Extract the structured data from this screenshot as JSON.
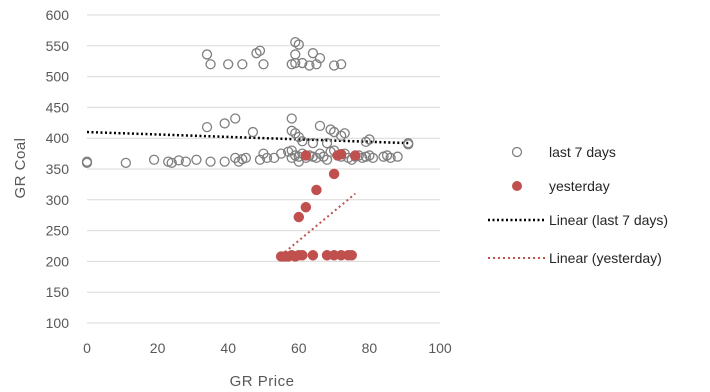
{
  "chart_data": {
    "type": "scatter",
    "xlabel": "GR Price",
    "ylabel": "GR Coal",
    "xlim": [
      0,
      100
    ],
    "ylim": [
      100,
      600
    ],
    "x_ticks": [
      "0",
      "20",
      "40",
      "60",
      "80",
      "100"
    ],
    "y_ticks": [
      "100",
      "150",
      "200",
      "250",
      "300",
      "350",
      "400",
      "450",
      "500",
      "550",
      "600"
    ],
    "grid": "horizontal",
    "legend_position": "right",
    "series": [
      {
        "name": "last 7 days",
        "marker": "hollow-circle",
        "color": "#7f7f7f",
        "points": [
          [
            0,
            362
          ],
          [
            0,
            360
          ],
          [
            11,
            360
          ],
          [
            19,
            365
          ],
          [
            23,
            362
          ],
          [
            24,
            360
          ],
          [
            26,
            364
          ],
          [
            28,
            362
          ],
          [
            31,
            365
          ],
          [
            35,
            362
          ],
          [
            39,
            362
          ],
          [
            42,
            368
          ],
          [
            43,
            362
          ],
          [
            44,
            366
          ],
          [
            45,
            368
          ],
          [
            47,
            410
          ],
          [
            49,
            365
          ],
          [
            50,
            375
          ],
          [
            51,
            368
          ],
          [
            53,
            368
          ],
          [
            55,
            375
          ],
          [
            57,
            378
          ],
          [
            58,
            380
          ],
          [
            58,
            368
          ],
          [
            59,
            372
          ],
          [
            60,
            370
          ],
          [
            60,
            362
          ],
          [
            61,
            375
          ],
          [
            62,
            368
          ],
          [
            63,
            372
          ],
          [
            64,
            370
          ],
          [
            65,
            368
          ],
          [
            66,
            375
          ],
          [
            67,
            370
          ],
          [
            68,
            365
          ],
          [
            69,
            378
          ],
          [
            70,
            380
          ],
          [
            71,
            372
          ],
          [
            72,
            370
          ],
          [
            73,
            375
          ],
          [
            74,
            368
          ],
          [
            75,
            365
          ],
          [
            76,
            370
          ],
          [
            77,
            372
          ],
          [
            78,
            368
          ],
          [
            79,
            370
          ],
          [
            80,
            372
          ],
          [
            81,
            368
          ],
          [
            84,
            370
          ],
          [
            85,
            372
          ],
          [
            86,
            368
          ],
          [
            88,
            370
          ],
          [
            91,
            390
          ],
          [
            91,
            392
          ],
          [
            34,
            418
          ],
          [
            39,
            424
          ],
          [
            42,
            432
          ],
          [
            58,
            432
          ],
          [
            58,
            412
          ],
          [
            59,
            408
          ],
          [
            60,
            402
          ],
          [
            61,
            395
          ],
          [
            66,
            420
          ],
          [
            69,
            414
          ],
          [
            70,
            410
          ],
          [
            72,
            404
          ],
          [
            73,
            408
          ],
          [
            79,
            394
          ],
          [
            80,
            398
          ],
          [
            68,
            392
          ],
          [
            64,
            392
          ],
          [
            34,
            536
          ],
          [
            35,
            520
          ],
          [
            40,
            520
          ],
          [
            44,
            520
          ],
          [
            48,
            538
          ],
          [
            49,
            542
          ],
          [
            50,
            520
          ],
          [
            58,
            520
          ],
          [
            59,
            522
          ],
          [
            59,
            536
          ],
          [
            59,
            556
          ],
          [
            60,
            552
          ],
          [
            61,
            522
          ],
          [
            63,
            518
          ],
          [
            64,
            538
          ],
          [
            65,
            520
          ],
          [
            66,
            530
          ],
          [
            70,
            518
          ],
          [
            72,
            520
          ]
        ],
        "trendline": {
          "name": "Linear (last 7 days)",
          "style": "dotted",
          "color": "#000000",
          "from": [
            0,
            410
          ],
          "to": [
            91,
            392
          ]
        }
      },
      {
        "name": "yesterday",
        "marker": "filled-circle",
        "color": "#c0504d",
        "points": [
          [
            55,
            208
          ],
          [
            56,
            208
          ],
          [
            57,
            208
          ],
          [
            58,
            210
          ],
          [
            59,
            208
          ],
          [
            60,
            210
          ],
          [
            61,
            210
          ],
          [
            64,
            210
          ],
          [
            68,
            210
          ],
          [
            70,
            210
          ],
          [
            72,
            210
          ],
          [
            74,
            210
          ],
          [
            75,
            210
          ],
          [
            60,
            272
          ],
          [
            62,
            288
          ],
          [
            65,
            316
          ],
          [
            70,
            342
          ],
          [
            62,
            372
          ],
          [
            71,
            372
          ],
          [
            72,
            374
          ],
          [
            76,
            372
          ]
        ],
        "trendline": {
          "name": "Linear (yesterday)",
          "style": "dotted",
          "color": "#c0504d",
          "from": [
            55,
            210
          ],
          "to": [
            76,
            310
          ]
        }
      }
    ]
  }
}
